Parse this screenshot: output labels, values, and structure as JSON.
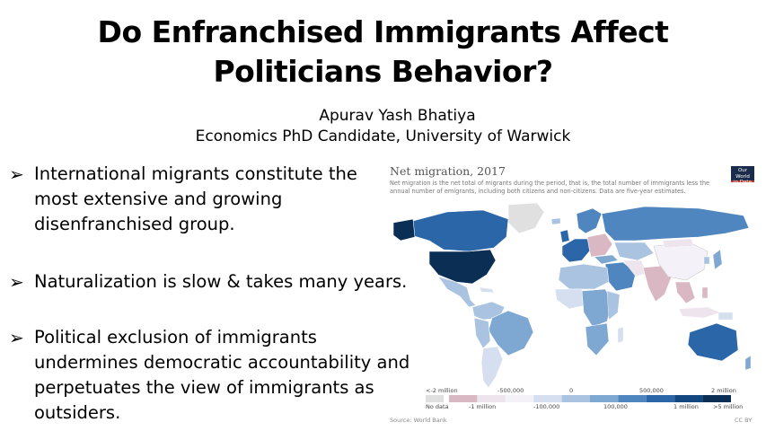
{
  "slide": {
    "title_line1": "Do Enfranchised Immigrants Affect",
    "title_line2": "Politicians Behavior?",
    "author_name": "Apurav Yash Bhatiya",
    "author_affiliation": "Economics PhD Candidate, University of Warwick",
    "bullets": [
      {
        "text": "International migrants constitute the\nmost extensive and growing\ndisenfranchised group."
      },
      {
        "text": "Naturalization is slow & takes many years."
      },
      {
        "text": "Political exclusion of immigrants\nundermines democratic accountability and\nperpetuates the view of immigrants as\noutsiders."
      }
    ],
    "bullet_icon": "arrow-bullet-icon"
  },
  "chart": {
    "title": "Net migration, 2017",
    "subtitle": "Net migration is the net total of migrants during the period, that is, the total number of immigrants less the annual number of emigrants, including both citizens and non-citizens. Data are five-year estimates.",
    "logo_line1": "Our World",
    "logo_line2": "in Data",
    "legend_top": [
      "<-2 million",
      "-500,000",
      "0",
      "500,000",
      "2 million"
    ],
    "legend_bottom": [
      "No data",
      "-1 million",
      "-100,000",
      "100,000",
      "1 million",
      ">5 million"
    ],
    "legend_colors": [
      "#e0e0e0",
      "#d9b8c4",
      "#ede4ee",
      "#f4f2f8",
      "#d6dff0",
      "#a9c3e0",
      "#7ea7d2",
      "#4f86bf",
      "#2a66a8",
      "#13477f",
      "#0b2e55"
    ],
    "source": "Source: World Bank",
    "license": "CC BY"
  }
}
